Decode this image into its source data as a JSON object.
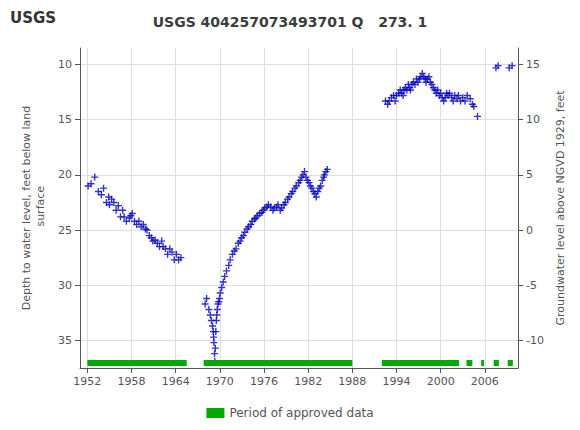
{
  "chart_data": {
    "type": "scatter",
    "title": "USGS 404257073493701 Q   273. 1",
    "annotations": [
      "USGS"
    ],
    "y_label": "Depth to water level, feet below land\n surface",
    "y2_label": "Groundwater level above NGVD 1929, feet",
    "xlim": [
      1951.0,
      2010.5
    ],
    "xticks": [
      1952,
      1958,
      1964,
      1970,
      1976,
      1982,
      1988,
      1994,
      2000,
      2006
    ],
    "ylim": [
      37.5,
      8.5
    ],
    "yticks": [
      10,
      15,
      20,
      25,
      30,
      35
    ],
    "y2lim": [
      -12.5,
      16.5
    ],
    "y2ticks": [
      15,
      10,
      5,
      0,
      -5,
      -10
    ],
    "grid": true,
    "legend": "bottom",
    "series": [
      {
        "type": "scatter",
        "color": "#0000BB",
        "marker": "plus",
        "x": [
          1952.1,
          1952.5,
          1953.0,
          1953.5,
          1953.9,
          1954.2,
          1954.6,
          1954.9,
          1955.0,
          1955.3,
          1955.6,
          1955.9,
          1956.2,
          1956.5,
          1956.8,
          1957.0,
          1957.3,
          1957.7,
          1957.9,
          1958.1,
          1958.4,
          1958.7,
          1959.0,
          1959.3,
          1959.6,
          1959.9,
          1960.1,
          1960.4,
          1960.7,
          1960.9,
          1961.2,
          1961.5,
          1961.8,
          1962.1,
          1962.3,
          1962.6,
          1962.9,
          1963.2,
          1963.5,
          1963.8,
          1964.1,
          1964.4,
          1964.7,
          1968.0,
          1968.2,
          1968.5,
          1968.7,
          1968.85,
          1969.0,
          1969.1,
          1969.15,
          1969.2,
          1969.28,
          1969.33,
          1969.38,
          1969.45,
          1969.52,
          1969.58,
          1969.65,
          1969.75,
          1969.85,
          1969.95,
          1970.05,
          1970.25,
          1970.45,
          1970.65,
          1970.9,
          1971.2,
          1971.4,
          1971.7,
          1971.95,
          1972.2,
          1972.5,
          1972.75,
          1972.95,
          1973.2,
          1973.4,
          1973.7,
          1973.9,
          1974.2,
          1974.4,
          1974.7,
          1974.9,
          1975.1,
          1975.4,
          1975.7,
          1975.9,
          1976.1,
          1976.4,
          1976.6,
          1976.9,
          1977.2,
          1977.4,
          1977.7,
          1977.9,
          1978.2,
          1978.4,
          1978.7,
          1978.9,
          1979.2,
          1979.4,
          1979.7,
          1979.9,
          1980.2,
          1980.4,
          1980.7,
          1980.9,
          1981.1,
          1981.3,
          1981.5,
          1981.7,
          1981.9,
          1982.1,
          1982.3,
          1982.5,
          1982.7,
          1982.9,
          1983.1,
          1983.3,
          1983.5,
          1983.7,
          1983.9,
          1984.1,
          1984.2,
          1984.4,
          1984.6,
          1992.5,
          1992.8,
          1993.0,
          1993.3,
          1993.6,
          1993.8,
          1994.0,
          1994.3,
          1994.5,
          1994.7,
          1994.9,
          1995.0,
          1995.2,
          1995.4,
          1995.6,
          1995.8,
          1995.9,
          1996.1,
          1996.3,
          1996.5,
          1996.7,
          1996.9,
          1997.1,
          1997.3,
          1997.5,
          1997.7,
          1997.9,
          1998.0,
          1998.2,
          1998.4,
          1998.6,
          1998.8,
          1999.0,
          1999.2,
          1999.4,
          1999.6,
          1999.8,
          2000.0,
          2000.2,
          2000.4,
          2000.6,
          2000.8,
          2001.0,
          2001.2,
          2001.5,
          2001.7,
          2001.9,
          2002.2,
          2002.4,
          2002.7,
          2003.0,
          2003.3,
          2003.6,
          2004.0,
          2004.3,
          2004.5,
          2005.0,
          2007.5,
          2007.8,
          2009.3,
          2009.7
        ],
        "values": [
          21.0,
          20.8,
          20.2,
          21.5,
          21.8,
          21.2,
          22.5,
          22.0,
          22.7,
          22.2,
          22.5,
          23.2,
          22.8,
          23.8,
          23.2,
          23.8,
          24.2,
          23.9,
          23.7,
          23.5,
          24.2,
          24.5,
          24.2,
          24.7,
          24.5,
          24.9,
          25.0,
          25.5,
          25.7,
          26.0,
          25.9,
          26.2,
          26.5,
          26.0,
          26.5,
          26.7,
          27.2,
          26.7,
          27.0,
          27.7,
          27.2,
          27.7,
          27.5,
          31.7,
          31.2,
          32.2,
          32.7,
          33.2,
          33.7,
          34.2,
          34.7,
          35.2,
          36.2,
          36.9,
          35.7,
          34.2,
          33.2,
          32.7,
          32.2,
          31.7,
          31.5,
          31.2,
          30.7,
          30.2,
          29.7,
          29.2,
          28.7,
          28.2,
          27.7,
          27.2,
          26.9,
          26.7,
          26.2,
          26.0,
          25.7,
          25.5,
          25.2,
          24.9,
          24.7,
          24.5,
          24.2,
          24.0,
          23.9,
          23.7,
          23.5,
          23.4,
          23.2,
          23.0,
          22.9,
          22.7,
          22.9,
          23.2,
          23.0,
          22.9,
          22.7,
          23.2,
          23.0,
          22.7,
          22.5,
          22.2,
          22.0,
          21.7,
          21.5,
          21.2,
          21.0,
          20.7,
          20.5,
          20.2,
          20.0,
          19.7,
          20.2,
          20.5,
          20.7,
          21.0,
          21.2,
          21.5,
          21.7,
          22.0,
          21.5,
          21.2,
          21.0,
          20.5,
          20.2,
          20.0,
          19.7,
          19.5,
          13.3,
          13.6,
          13.3,
          13.0,
          12.8,
          13.3,
          12.8,
          12.6,
          12.3,
          12.6,
          12.8,
          12.3,
          12.1,
          12.3,
          11.8,
          12.1,
          12.3,
          11.8,
          11.6,
          11.8,
          11.3,
          11.6,
          11.3,
          11.1,
          10.8,
          11.1,
          11.3,
          11.6,
          11.3,
          11.1,
          11.6,
          11.8,
          12.1,
          12.3,
          12.6,
          12.3,
          12.8,
          12.6,
          13.0,
          13.3,
          13.0,
          12.6,
          12.8,
          12.6,
          13.0,
          13.3,
          12.8,
          13.1,
          12.8,
          13.3,
          13.0,
          13.3,
          12.8,
          13.1,
          13.6,
          13.8,
          14.7,
          10.3,
          10.1,
          10.3,
          10.1
        ]
      },
      {
        "name": "Period of approved data",
        "type": "range",
        "color": "#00AA00",
        "periods": [
          [
            1952.0,
            1965.5
          ],
          [
            1967.8,
            1988.0
          ],
          [
            1992.0,
            2002.5
          ],
          [
            2003.5,
            2004.3
          ],
          [
            2005.5,
            2005.9
          ],
          [
            2007.2,
            2007.9
          ],
          [
            2009.1,
            2009.8
          ]
        ]
      }
    ]
  }
}
